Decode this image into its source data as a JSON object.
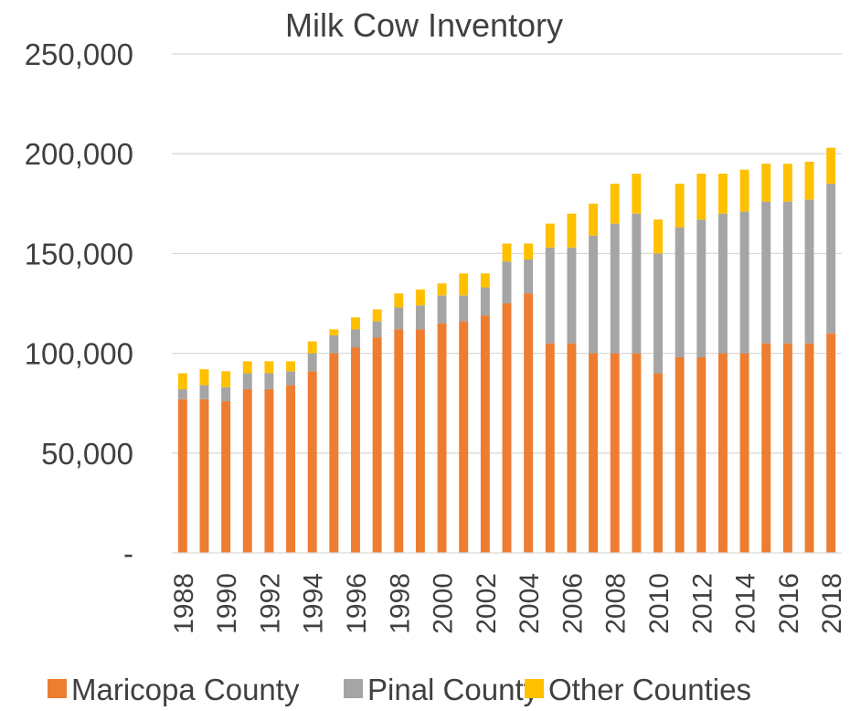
{
  "chart_data": {
    "type": "bar",
    "stacked": true,
    "title": "Milk Cow Inventory",
    "xlabel": "",
    "ylabel": "",
    "ylim": [
      0,
      250000
    ],
    "yticks": [
      0,
      50000,
      100000,
      150000,
      200000,
      250000
    ],
    "ytick_labels": [
      "-",
      "50,000",
      "100,000",
      "150,000",
      "200,000",
      "250,000"
    ],
    "xtick_labels": [
      "1988",
      "1990",
      "1992",
      "1994",
      "1996",
      "1998",
      "2000",
      "2002",
      "2004",
      "2006",
      "2008",
      "2010",
      "2012",
      "2014",
      "2016",
      "2018"
    ],
    "grid": true,
    "legend_position": "bottom",
    "categories": [
      "1988",
      "1989",
      "1990",
      "1991",
      "1992",
      "1993",
      "1994",
      "1995",
      "1996",
      "1997",
      "1998",
      "1999",
      "2000",
      "2001",
      "2002",
      "2003",
      "2004",
      "2005",
      "2006",
      "2007",
      "2008",
      "2009",
      "2010",
      "2011",
      "2012",
      "2013",
      "2014",
      "2015",
      "2016",
      "2017",
      "2018"
    ],
    "series": [
      {
        "name": "Maricopa County",
        "color": "#ed7d31",
        "values": [
          77000,
          77000,
          76000,
          82000,
          82000,
          84000,
          91000,
          100000,
          103000,
          108000,
          112000,
          112000,
          115000,
          116000,
          119000,
          125000,
          130000,
          105000,
          105000,
          100000,
          100000,
          100000,
          90000,
          98000,
          98000,
          100000,
          100000,
          105000,
          105000,
          105000,
          110000
        ]
      },
      {
        "name": "Pinal County",
        "color": "#a5a5a5",
        "values": [
          5000,
          7000,
          7000,
          8000,
          8000,
          7000,
          9000,
          9000,
          9000,
          8000,
          11000,
          12000,
          14000,
          13000,
          14000,
          21000,
          17000,
          48000,
          48000,
          59000,
          65000,
          70000,
          60000,
          65000,
          69000,
          70000,
          71000,
          71000,
          71000,
          72000,
          75000
        ]
      },
      {
        "name": "Other Counties",
        "color": "#ffc000",
        "values": [
          8000,
          8000,
          8000,
          6000,
          6000,
          5000,
          6000,
          3000,
          6000,
          6000,
          7000,
          8000,
          6000,
          11000,
          7000,
          9000,
          8000,
          12000,
          17000,
          16000,
          20000,
          20000,
          17000,
          22000,
          23000,
          20000,
          21000,
          19000,
          19000,
          19000,
          18000
        ]
      }
    ]
  }
}
